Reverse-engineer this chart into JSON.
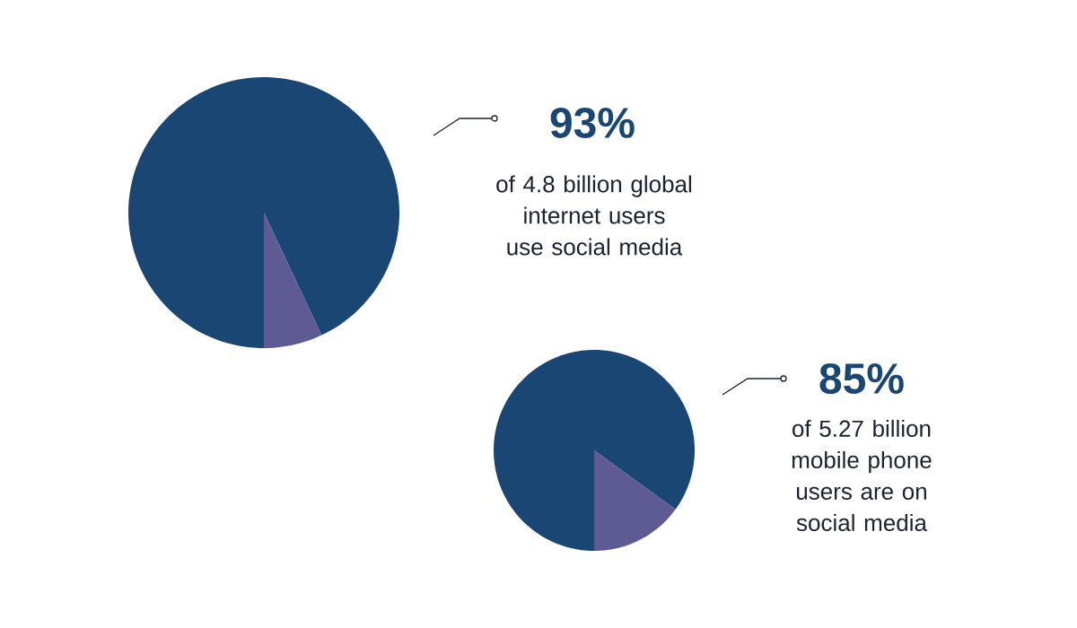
{
  "chart_data": [
    {
      "type": "pie",
      "categories": [
        null,
        null
      ],
      "values": [
        93,
        7
      ],
      "colors": [
        "#1a4674",
        "#5e5b94"
      ],
      "annotations": [
        "93%",
        "of 4.8 billion global internet users use social media"
      ]
    },
    {
      "type": "pie",
      "categories": [
        null,
        null
      ],
      "values": [
        85,
        15
      ],
      "colors": [
        "#1a4674",
        "#5e5b94"
      ],
      "annotations": [
        "85%",
        "of 5.27 billion mobile phone users are on social media"
      ]
    }
  ]
}
